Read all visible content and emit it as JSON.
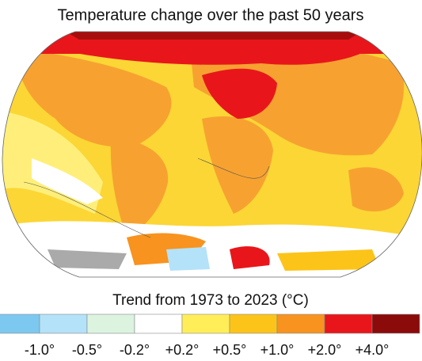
{
  "title": "Temperature change over the past 50 years",
  "legend": {
    "title": "Trend from 1973 to 2023 (°C)",
    "colors": [
      "#7cc8f0",
      "#b4e2f8",
      "#dcf3e0",
      "#ffffff",
      "#ffee58",
      "#fcc419",
      "#f7931e",
      "#e8161b",
      "#8b0a0a"
    ],
    "labels": [
      "-1.0°",
      "-0.5°",
      "-0.2°",
      "+0.2°",
      "+0.5°",
      "+1.0°",
      "+2.0°",
      "+4.0°"
    ]
  }
}
